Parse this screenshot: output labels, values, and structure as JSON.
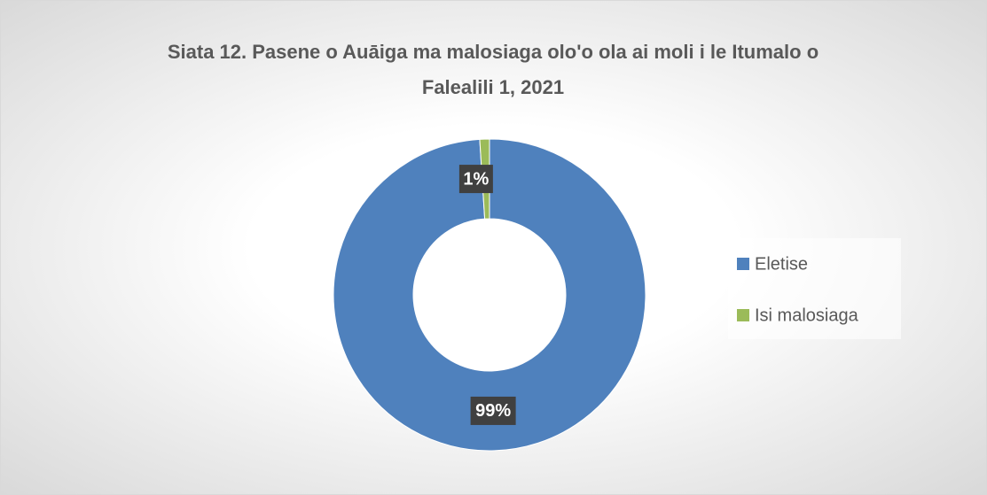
{
  "chart_data": {
    "type": "donut",
    "title": "Siata 12. Pasene o Auāiga ma malosiaga olo'o ola ai moli i le Itumalo o Falealili 1, 2021",
    "categories": [
      "Eletise",
      "Isi malosiaga"
    ],
    "values": [
      99,
      1
    ],
    "value_labels": [
      "99%",
      "1%"
    ],
    "colors": [
      "#4f81bd",
      "#9bbb59"
    ],
    "legend": "right"
  }
}
